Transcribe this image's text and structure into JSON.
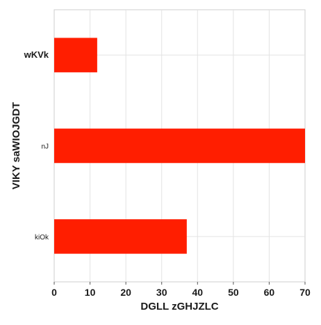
{
  "chart_data": {
    "type": "bar",
    "orientation": "horizontal",
    "categories": [
      "wKVk",
      "nJ",
      "kiOk"
    ],
    "values": [
      12,
      70,
      37
    ],
    "title": "",
    "xlabel": "DGLL zGHJZLC",
    "ylabel": "VIKY saWIOJGDT",
    "xlim": [
      0,
      70
    ],
    "xticks": [
      0,
      10,
      20,
      30,
      40,
      50,
      60,
      70
    ],
    "grid": true,
    "bar_color": "#ff1e00",
    "emphasized_category": "wKVk"
  }
}
